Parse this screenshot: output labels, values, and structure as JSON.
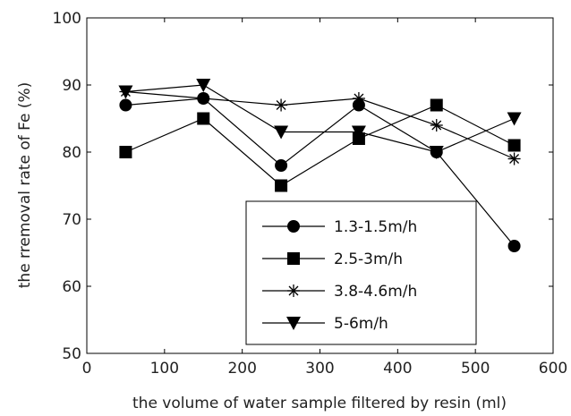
{
  "chart_data": {
    "type": "line",
    "title": "",
    "xlabel": "the volume of water sample filtered by resin (ml)",
    "ylabel": "the rremoval rate of Fe (%)",
    "xlim": [
      0,
      600
    ],
    "ylim": [
      50,
      100
    ],
    "x_ticks": [
      0,
      100,
      200,
      300,
      400,
      500,
      600
    ],
    "y_ticks": [
      50,
      60,
      70,
      80,
      90,
      100
    ],
    "grid": false,
    "legend_position": "lower-right",
    "x": [
      50,
      150,
      250,
      350,
      450,
      550
    ],
    "series": [
      {
        "name": "1.3-1.5m/h",
        "marker": "circle",
        "values": [
          87,
          88,
          78,
          87,
          80,
          66
        ]
      },
      {
        "name": "2.5-3m/h",
        "marker": "square",
        "values": [
          80,
          85,
          75,
          82,
          87,
          81
        ]
      },
      {
        "name": "3.8-4.6m/h",
        "marker": "star",
        "values": [
          89,
          88,
          87,
          88,
          84,
          79
        ]
      },
      {
        "name": "5-6m/h",
        "marker": "triangle-down",
        "values": [
          89,
          90,
          83,
          83,
          80,
          85
        ]
      }
    ],
    "line_color": "#000000"
  }
}
